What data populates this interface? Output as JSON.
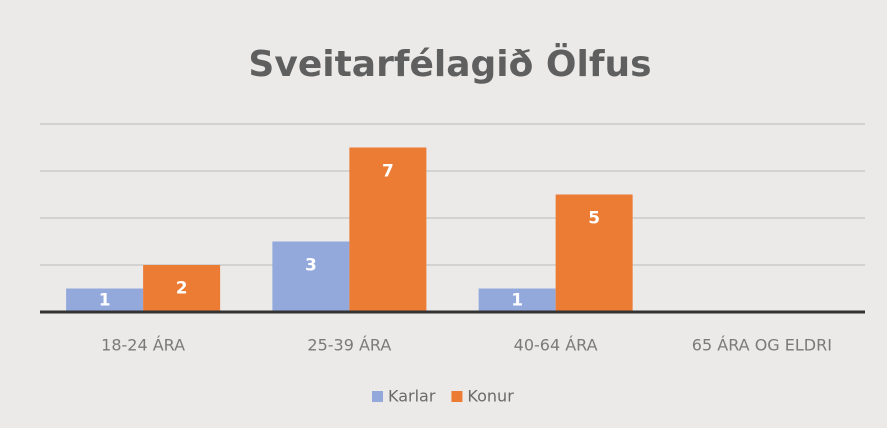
{
  "chart_data": {
    "type": "bar",
    "title": "Sveitarfélagið Ölfus",
    "categories": [
      "18-24 ÁRA",
      "25-39 ÁRA",
      "40-64 ÁRA",
      "65 ÁRA OG ELDRI"
    ],
    "series": [
      {
        "name": "Karlar",
        "color": "#93a9dc",
        "values": [
          1,
          3,
          1,
          null
        ]
      },
      {
        "name": "Konur",
        "color": "#ec7b33",
        "values": [
          2,
          7,
          5,
          null
        ]
      }
    ],
    "ylim": [
      0,
      8
    ],
    "yticks": [
      0,
      2,
      4,
      6,
      8
    ],
    "grid": true,
    "legend": "bottom"
  }
}
